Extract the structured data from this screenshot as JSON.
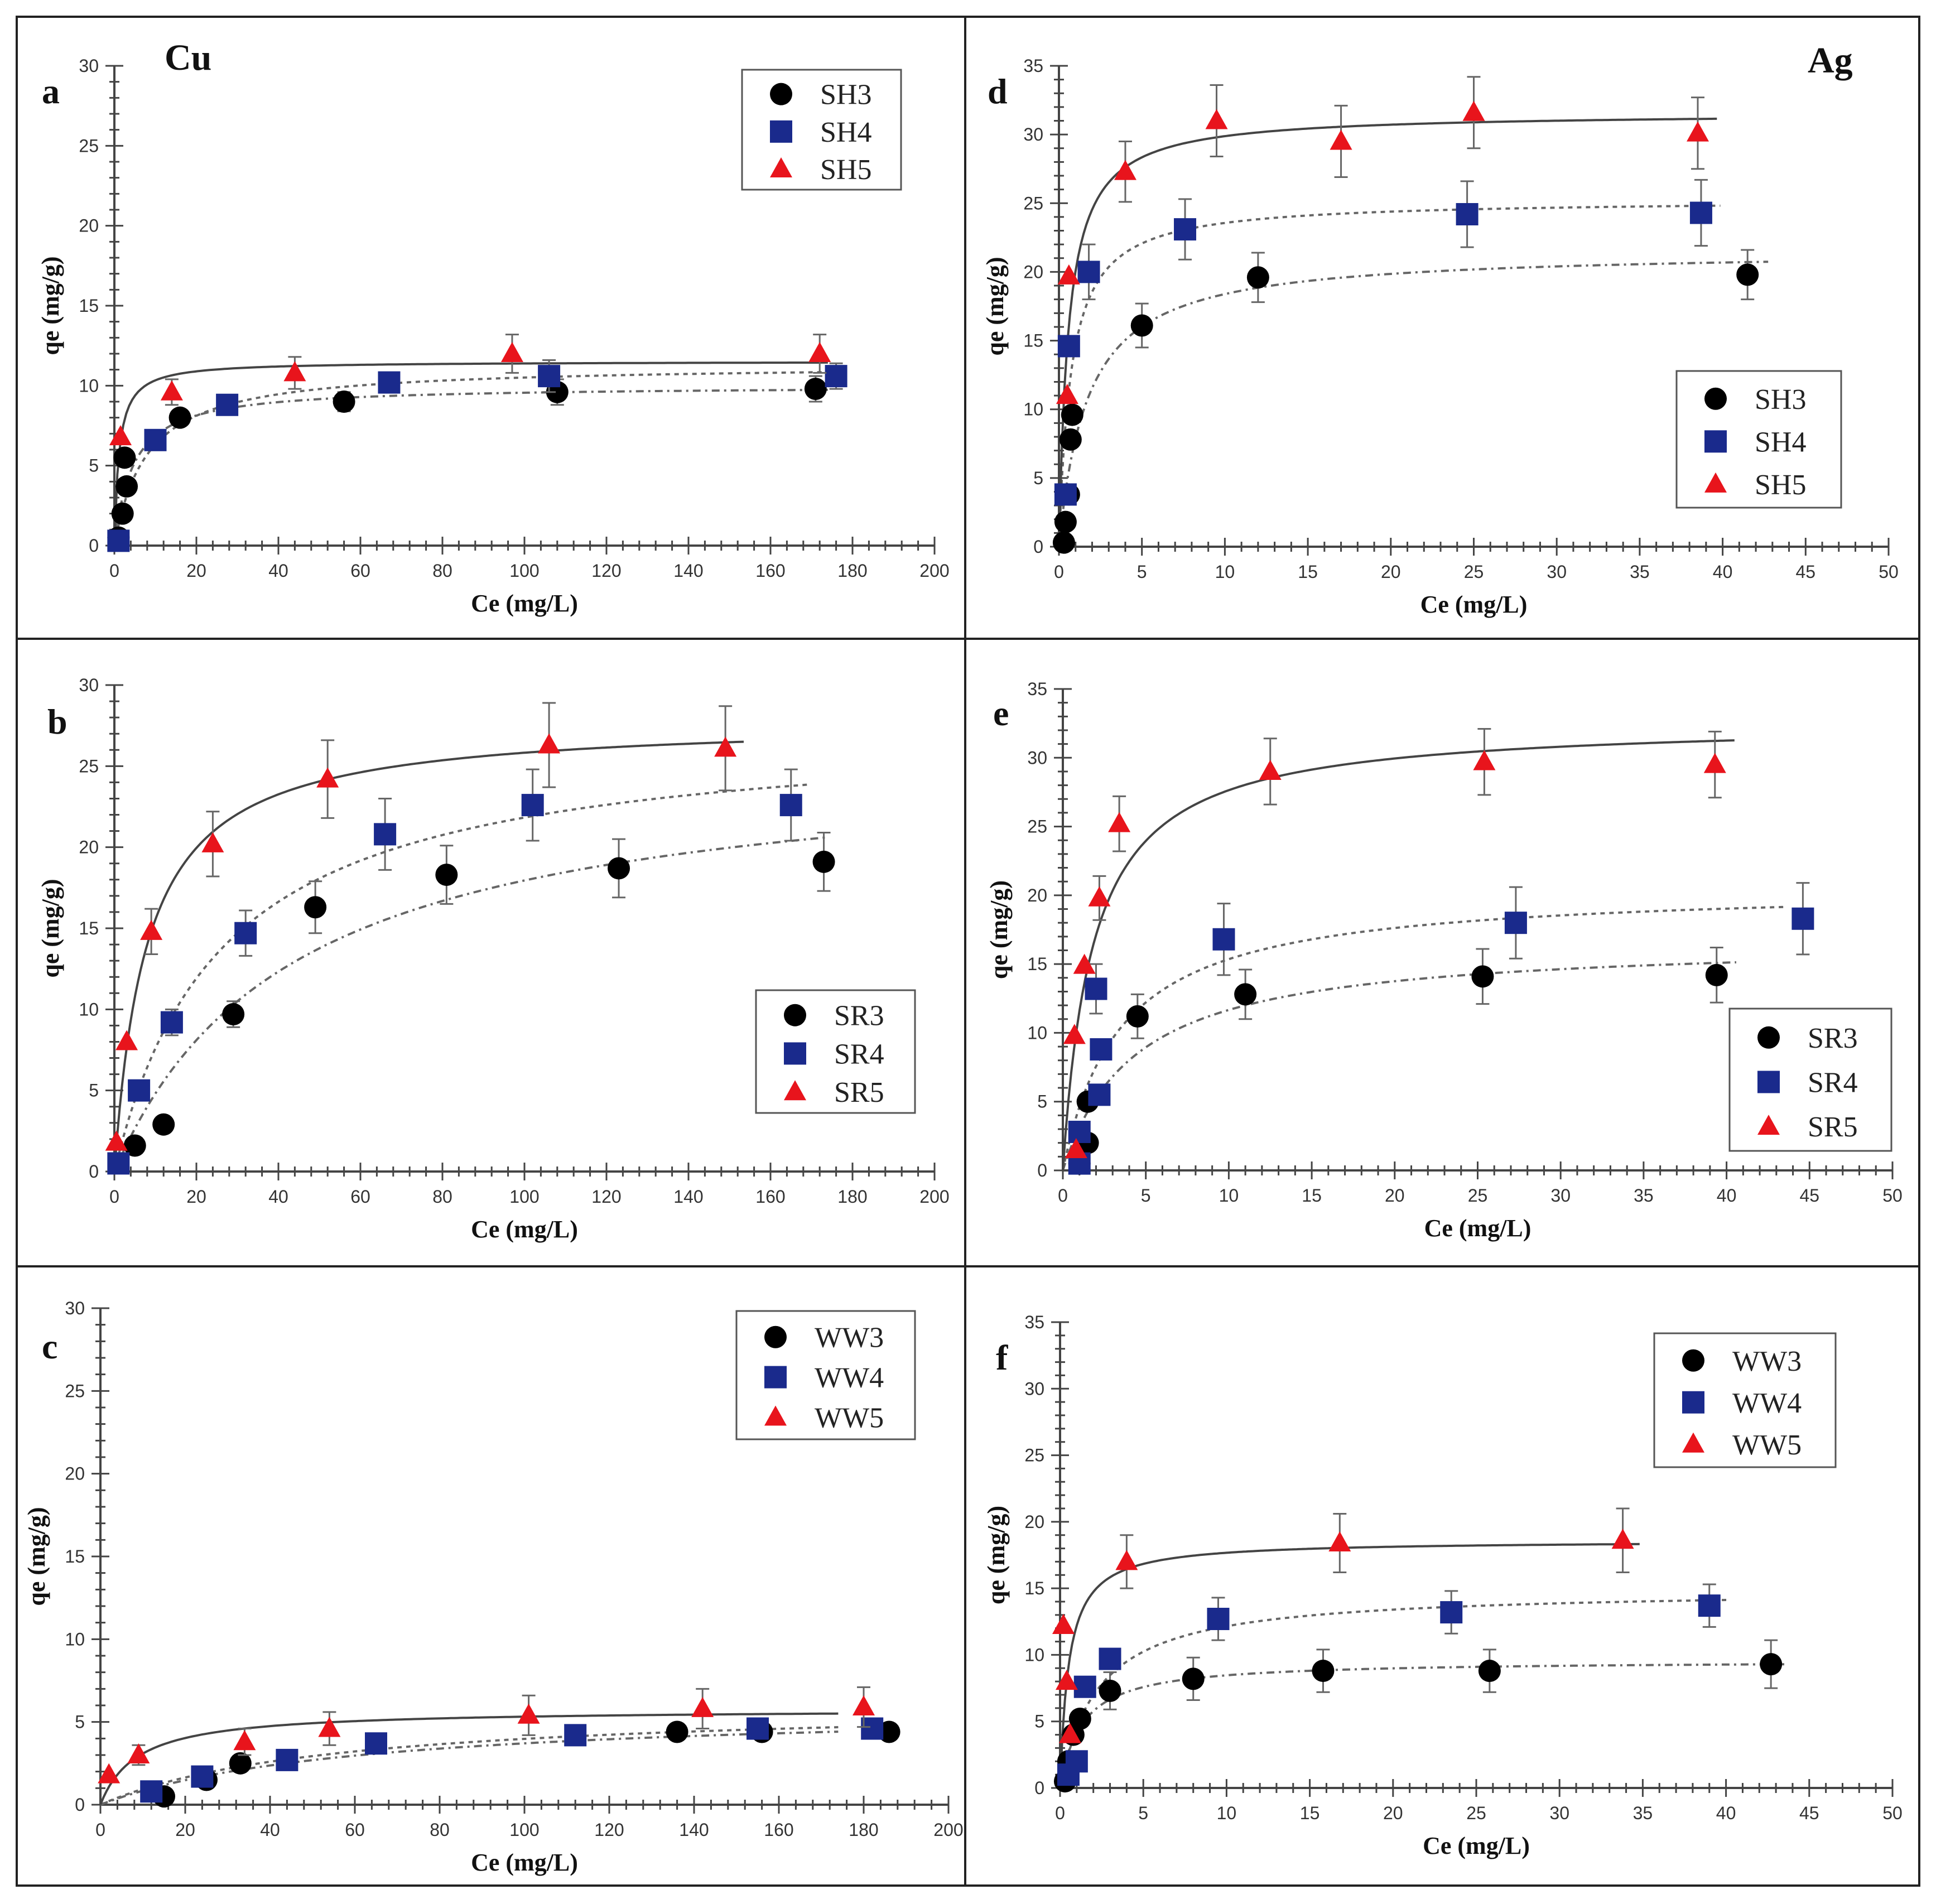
{
  "metals": {
    "cu": "Cu",
    "ag": "Ag"
  },
  "colors": {
    "series1": "#000000",
    "series2": "#1a2a8c",
    "series3": "#e8141c"
  },
  "chart_data": [
    {
      "panel": "a",
      "type": "scatter",
      "metal": "Cu",
      "xlabel": "Ce (mg/L)",
      "ylabel": "qe (mg/g)",
      "xlim": [
        0,
        200
      ],
      "ylim": [
        0,
        30
      ],
      "xticks": [
        0,
        20,
        40,
        60,
        80,
        100,
        120,
        140,
        160,
        180,
        200
      ],
      "yticks": [
        0,
        5,
        10,
        15,
        20,
        25,
        30
      ],
      "legend": "top-right",
      "series": [
        {
          "name": "SH3",
          "marker": "circle",
          "fit": "dashdot",
          "points": [
            [
              1,
              0.5
            ],
            [
              2,
              2
            ],
            [
              3,
              3.7
            ],
            [
              2.5,
              5.5
            ],
            [
              16,
              8
            ],
            [
              56,
              9
            ],
            [
              108,
              9.6
            ],
            [
              171,
              9.8
            ]
          ],
          "errors": [
            0,
            0,
            0,
            0,
            0.5,
            0.6,
            0.8,
            0.8
          ]
        },
        {
          "name": "SH4",
          "marker": "square",
          "fit": "dash",
          "points": [
            [
              1,
              0.3
            ],
            [
              10,
              6.6
            ],
            [
              27.5,
              8.8
            ],
            [
              67,
              10.2
            ],
            [
              106,
              10.6
            ],
            [
              176,
              10.6
            ]
          ],
          "errors": [
            0,
            0,
            0,
            0,
            1,
            0.8
          ]
        },
        {
          "name": "SH5",
          "marker": "triangle",
          "fit": "solid",
          "points": [
            [
              1.5,
              6.8
            ],
            [
              14,
              9.6
            ],
            [
              44,
              10.8
            ],
            [
              97,
              12
            ],
            [
              172,
              12
            ]
          ],
          "errors": [
            0,
            0.8,
            1,
            1.2,
            1.2
          ]
        }
      ]
    },
    {
      "panel": "b",
      "type": "scatter",
      "metal": "",
      "xlabel": "Ce (mg/L)",
      "ylabel": "qe (mg/g)",
      "xlim": [
        0,
        200
      ],
      "ylim": [
        0,
        30
      ],
      "xticks": [
        0,
        20,
        40,
        60,
        80,
        100,
        120,
        140,
        160,
        180,
        200
      ],
      "yticks": [
        0,
        5,
        10,
        15,
        20,
        25,
        30
      ],
      "legend": "bottom-right",
      "series": [
        {
          "name": "SR3",
          "marker": "circle",
          "fit": "dashdot",
          "points": [
            [
              5,
              1.6
            ],
            [
              12,
              2.9
            ],
            [
              29,
              9.7
            ],
            [
              49,
              16.3
            ],
            [
              81,
              18.3
            ],
            [
              123,
              18.7
            ],
            [
              173,
              19.1
            ]
          ],
          "errors": [
            0,
            0,
            0.8,
            1.6,
            1.8,
            1.8,
            1.8
          ]
        },
        {
          "name": "SR4",
          "marker": "square",
          "fit": "dash",
          "points": [
            [
              1,
              0.5
            ],
            [
              6,
              5
            ],
            [
              14,
              9.2
            ],
            [
              32,
              14.7
            ],
            [
              66,
              20.8
            ],
            [
              102,
              22.6
            ],
            [
              165,
              22.6
            ]
          ],
          "errors": [
            0,
            0,
            0.8,
            1.4,
            2.2,
            2.2,
            2.2
          ]
        },
        {
          "name": "SR5",
          "marker": "triangle",
          "fit": "solid",
          "points": [
            [
              0.5,
              1.8
            ],
            [
              3,
              8
            ],
            [
              9,
              14.8
            ],
            [
              24,
              20.2
            ],
            [
              52,
              24.2
            ],
            [
              106,
              26.3
            ],
            [
              149,
              26.1
            ]
          ],
          "errors": [
            0,
            0,
            1.4,
            2,
            2.4,
            2.6,
            2.6
          ]
        }
      ]
    },
    {
      "panel": "c",
      "type": "scatter",
      "metal": "",
      "xlabel": "Ce (mg/L)",
      "ylabel": "qe (mg/g)",
      "xlim": [
        0,
        200
      ],
      "ylim": [
        0,
        30
      ],
      "xticks": [
        0,
        20,
        40,
        60,
        80,
        100,
        120,
        140,
        160,
        180,
        200
      ],
      "yticks": [
        0,
        5,
        10,
        15,
        20,
        25,
        30
      ],
      "legend": "top-right",
      "series": [
        {
          "name": "WW3",
          "marker": "circle",
          "fit": "dashdot",
          "points": [
            [
              15,
              0.5
            ],
            [
              25,
              1.5
            ],
            [
              33,
              2.5
            ],
            [
              136,
              4.4
            ],
            [
              156,
              4.4
            ],
            [
              186,
              4.4
            ]
          ],
          "errors": [
            0,
            0,
            0,
            0,
            0,
            0
          ]
        },
        {
          "name": "WW4",
          "marker": "square",
          "fit": "dash",
          "points": [
            [
              12,
              0.8
            ],
            [
              24,
              1.7
            ],
            [
              44,
              2.7
            ],
            [
              65,
              3.7
            ],
            [
              112,
              4.2
            ],
            [
              155,
              4.6
            ],
            [
              182,
              4.6
            ]
          ],
          "errors": [
            0,
            0,
            0,
            0,
            0,
            0,
            0
          ]
        },
        {
          "name": "WW5",
          "marker": "triangle",
          "fit": "solid",
          "points": [
            [
              2,
              1.8
            ],
            [
              9,
              3
            ],
            [
              34,
              3.8
            ],
            [
              54,
              4.6
            ],
            [
              101,
              5.4
            ],
            [
              142,
              5.8
            ],
            [
              180,
              5.9
            ]
          ],
          "errors": [
            0,
            0.6,
            0.8,
            1,
            1.2,
            1.2,
            1.2
          ]
        }
      ]
    },
    {
      "panel": "d",
      "type": "scatter",
      "metal": "Ag",
      "xlabel": "Ce (mg/L)",
      "ylabel": "qe (mg/g)",
      "xlim": [
        0,
        50
      ],
      "ylim": [
        0,
        35
      ],
      "xticks": [
        0,
        5,
        10,
        15,
        20,
        25,
        30,
        35,
        40,
        45,
        50
      ],
      "yticks": [
        0,
        5,
        10,
        15,
        20,
        25,
        30,
        35
      ],
      "legend": "bottom-right",
      "series": [
        {
          "name": "SH3",
          "marker": "circle",
          "fit": "dashdot",
          "points": [
            [
              0.3,
              0.3
            ],
            [
              0.4,
              1.8
            ],
            [
              0.6,
              3.8
            ],
            [
              0.7,
              7.8
            ],
            [
              0.8,
              9.6
            ],
            [
              5,
              16.1
            ],
            [
              12,
              19.6
            ],
            [
              41.5,
              19.8
            ]
          ],
          "errors": [
            0,
            0,
            0,
            0,
            0,
            1.6,
            1.8,
            1.8
          ]
        },
        {
          "name": "SH4",
          "marker": "square",
          "fit": "dash",
          "points": [
            [
              0.4,
              3.8
            ],
            [
              0.6,
              14.6
            ],
            [
              1.8,
              20
            ],
            [
              7.6,
              23.1
            ],
            [
              24.6,
              24.2
            ],
            [
              38.7,
              24.3
            ]
          ],
          "errors": [
            0,
            0,
            2,
            2.2,
            2.4,
            2.4
          ]
        },
        {
          "name": "SH5",
          "marker": "triangle",
          "fit": "solid",
          "points": [
            [
              0.5,
              11
            ],
            [
              0.6,
              19.7
            ],
            [
              4,
              27.3
            ],
            [
              9.5,
              31
            ],
            [
              17,
              29.5
            ],
            [
              25,
              31.6
            ],
            [
              38.5,
              30.1
            ]
          ],
          "errors": [
            0,
            0,
            2.2,
            2.6,
            2.6,
            2.6,
            2.6
          ]
        }
      ]
    },
    {
      "panel": "e",
      "type": "scatter",
      "metal": "",
      "xlabel": "Ce (mg/L)",
      "ylabel": "qe (mg/g)",
      "xlim": [
        0,
        50
      ],
      "ylim": [
        0,
        35
      ],
      "xticks": [
        0,
        5,
        10,
        15,
        20,
        25,
        30,
        35,
        40,
        45,
        50
      ],
      "yticks": [
        0,
        5,
        10,
        15,
        20,
        25,
        30,
        35
      ],
      "legend": "bottom-right",
      "series": [
        {
          "name": "SR3",
          "marker": "circle",
          "fit": "dashdot",
          "points": [
            [
              1,
              0.5
            ],
            [
              1.5,
              2
            ],
            [
              1.5,
              5
            ],
            [
              4.5,
              11.2
            ],
            [
              11,
              12.8
            ],
            [
              25.3,
              14.1
            ],
            [
              39.4,
              14.2
            ]
          ],
          "errors": [
            0,
            0,
            0,
            1.6,
            1.8,
            2,
            2
          ]
        },
        {
          "name": "SR4",
          "marker": "square",
          "fit": "dash",
          "points": [
            [
              1,
              0.5
            ],
            [
              1,
              2.8
            ],
            [
              2.2,
              5.5
            ],
            [
              2.3,
              8.8
            ],
            [
              2,
              13.2
            ],
            [
              9.7,
              16.8
            ],
            [
              27.3,
              18
            ],
            [
              44.6,
              18.3
            ]
          ],
          "errors": [
            0,
            0,
            0,
            0,
            1.8,
            2.6,
            2.6,
            2.6
          ]
        },
        {
          "name": "SR5",
          "marker": "triangle",
          "fit": "solid",
          "points": [
            [
              0.8,
              1.5
            ],
            [
              0.7,
              9.8
            ],
            [
              1.3,
              14.9
            ],
            [
              2.2,
              19.8
            ],
            [
              3.4,
              25.2
            ],
            [
              12.5,
              29
            ],
            [
              25.4,
              29.7
            ],
            [
              39.3,
              29.5
            ]
          ],
          "errors": [
            0,
            0,
            0,
            1.6,
            2,
            2.4,
            2.4,
            2.4
          ]
        }
      ]
    },
    {
      "panel": "f",
      "type": "scatter",
      "metal": "",
      "xlabel": "Ce (mg/L)",
      "ylabel": "qe (mg/g)",
      "xlim": [
        0,
        50
      ],
      "ylim": [
        0,
        35
      ],
      "xticks": [
        0,
        5,
        10,
        15,
        20,
        25,
        30,
        35,
        40,
        45,
        50
      ],
      "yticks": [
        0,
        5,
        10,
        15,
        20,
        25,
        30,
        35
      ],
      "legend": "top-right",
      "series": [
        {
          "name": "WW3",
          "marker": "circle",
          "fit": "dashdot",
          "points": [
            [
              0.3,
              0.5
            ],
            [
              0.5,
              2
            ],
            [
              0.8,
              4
            ],
            [
              1.2,
              5.2
            ],
            [
              3,
              7.3
            ],
            [
              8,
              8.2
            ],
            [
              15.8,
              8.8
            ],
            [
              25.8,
              8.8
            ],
            [
              42.7,
              9.3
            ]
          ],
          "errors": [
            0,
            0,
            0,
            0,
            1.4,
            1.6,
            1.6,
            1.6,
            1.8
          ]
        },
        {
          "name": "WW4",
          "marker": "square",
          "fit": "dash",
          "points": [
            [
              0.5,
              1
            ],
            [
              1,
              2
            ],
            [
              1.5,
              7.6
            ],
            [
              3,
              9.7
            ],
            [
              9.5,
              12.7
            ],
            [
              23.5,
              13.2
            ],
            [
              39,
              13.7
            ]
          ],
          "errors": [
            0,
            0,
            0,
            0,
            1.6,
            1.6,
            1.6
          ]
        },
        {
          "name": "WW5",
          "marker": "triangle",
          "fit": "solid",
          "points": [
            [
              0.2,
              12.2
            ],
            [
              0.4,
              8
            ],
            [
              0.6,
              4
            ],
            [
              4,
              17
            ],
            [
              16.8,
              18.4
            ],
            [
              33.8,
              18.6
            ]
          ],
          "errors": [
            0,
            0,
            0,
            2,
            2.2,
            2.4
          ]
        }
      ]
    }
  ]
}
